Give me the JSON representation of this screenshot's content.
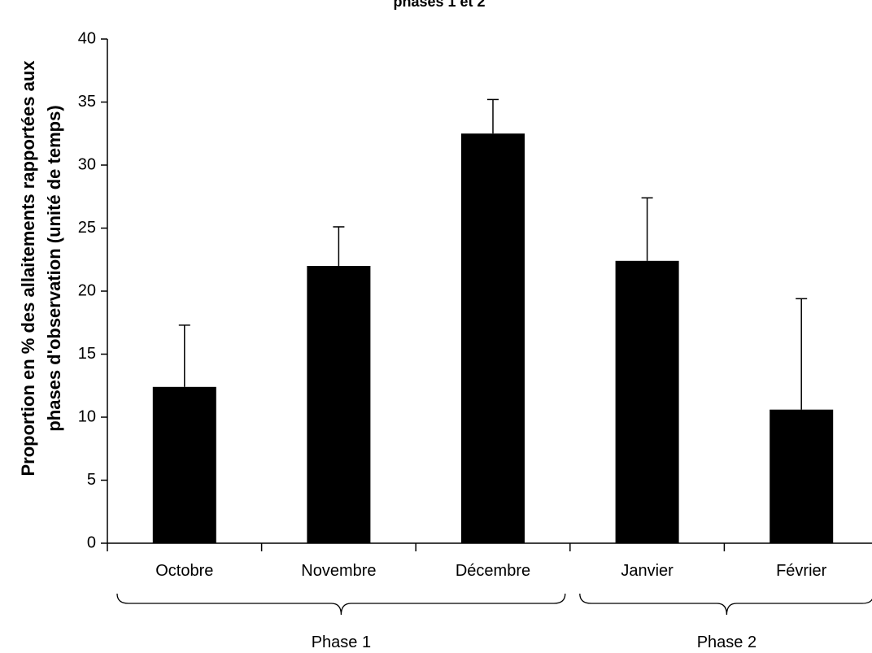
{
  "chart_data": {
    "type": "bar",
    "title": "phases 1 et 2",
    "ylabel_lines": [
      "Proportion en % des allaitements rapportées aux",
      "phases d'observation (unité de temps)"
    ],
    "xlabel": "",
    "categories": [
      "Octobre",
      "Novembre",
      "Décembre",
      "Janvier",
      "Février"
    ],
    "values": [
      12.4,
      22.0,
      32.5,
      22.4,
      10.6
    ],
    "error_upper": [
      17.3,
      25.1,
      35.2,
      27.4,
      19.4
    ],
    "ylim": [
      0,
      40
    ],
    "yticks": [
      "0",
      "5",
      "10",
      "15",
      "20",
      "25",
      "30",
      "35",
      "40"
    ],
    "groups": [
      {
        "label": "Phase 1",
        "categories": [
          "Octobre",
          "Novembre",
          "Décembre"
        ]
      },
      {
        "label": "Phase 2",
        "categories": [
          "Janvier",
          "Février"
        ]
      }
    ],
    "bar_color": "#000000",
    "grid": false,
    "legend": "none"
  }
}
